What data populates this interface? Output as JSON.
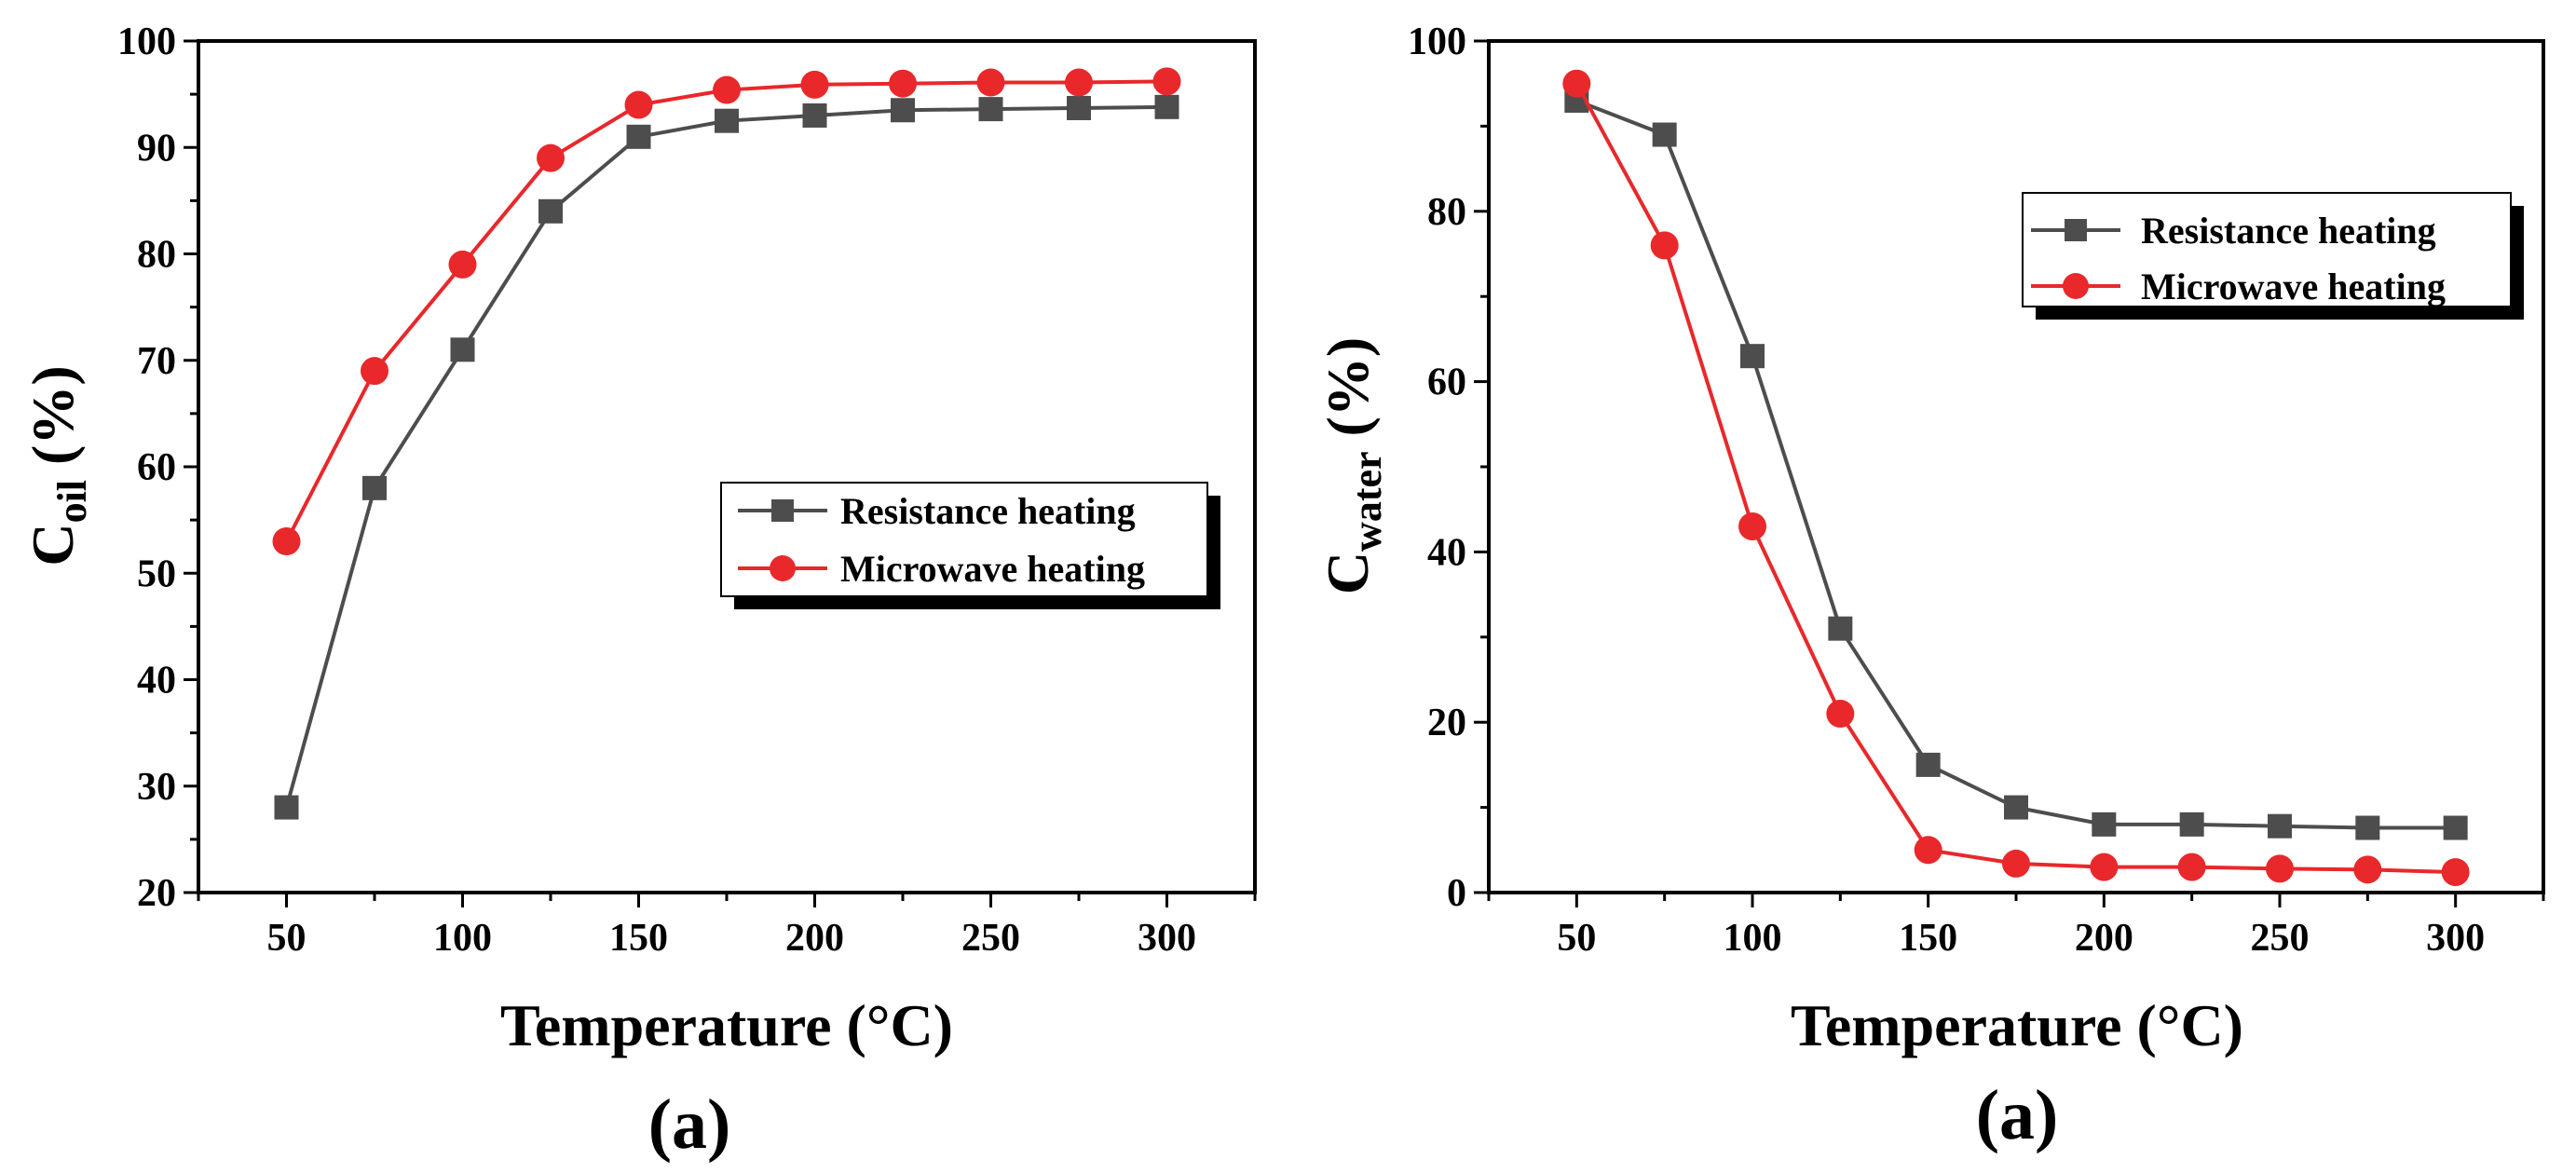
{
  "chart_data": [
    {
      "type": "line",
      "panel_label": "(a)",
      "xlabel": "Temperature (°C)",
      "ylabel_main": "C",
      "ylabel_sub": "oil",
      "ylabel_tail": " (%)",
      "xlim": [
        25,
        325
      ],
      "ylim": [
        20,
        100
      ],
      "x_ticks": [
        50,
        100,
        150,
        200,
        250,
        300
      ],
      "y_ticks": [
        20,
        30,
        40,
        50,
        60,
        70,
        80,
        90,
        100
      ],
      "grid": false,
      "legend_position": "center-right",
      "x": [
        50,
        75,
        100,
        125,
        150,
        175,
        200,
        225,
        250,
        275,
        300
      ],
      "series": [
        {
          "name": "Resistance heating",
          "marker": "square",
          "color": "#4d4d4d",
          "values": [
            28,
            58,
            71,
            84,
            91,
            92.5,
            93,
            93.5,
            93.6,
            93.7,
            93.8
          ]
        },
        {
          "name": "Microwave heating",
          "marker": "circle",
          "color": "#e8282b",
          "values": [
            53,
            69,
            79,
            89,
            94,
            95.4,
            95.9,
            96,
            96.1,
            96.1,
            96.2
          ]
        }
      ]
    },
    {
      "type": "line",
      "panel_label": "(a)",
      "xlabel": "Temperature (°C)",
      "ylabel_main": "C",
      "ylabel_sub": "water",
      "ylabel_tail": " (%)",
      "xlim": [
        25,
        325
      ],
      "ylim": [
        0,
        100
      ],
      "x_ticks": [
        50,
        100,
        150,
        200,
        250,
        300
      ],
      "y_ticks": [
        0,
        20,
        40,
        60,
        80,
        100
      ],
      "grid": false,
      "legend_position": "top-right",
      "x": [
        50,
        75,
        100,
        125,
        150,
        175,
        200,
        225,
        250,
        275,
        300
      ],
      "series": [
        {
          "name": "Resistance heating",
          "marker": "square",
          "color": "#4d4d4d",
          "values": [
            93,
            89,
            63,
            31,
            15,
            10,
            8,
            8,
            7.8,
            7.6,
            7.6
          ]
        },
        {
          "name": "Microwave heating",
          "marker": "circle",
          "color": "#e8282b",
          "values": [
            95,
            76,
            43,
            21,
            5,
            3.4,
            3,
            3,
            2.8,
            2.7,
            2.4
          ]
        }
      ]
    }
  ]
}
